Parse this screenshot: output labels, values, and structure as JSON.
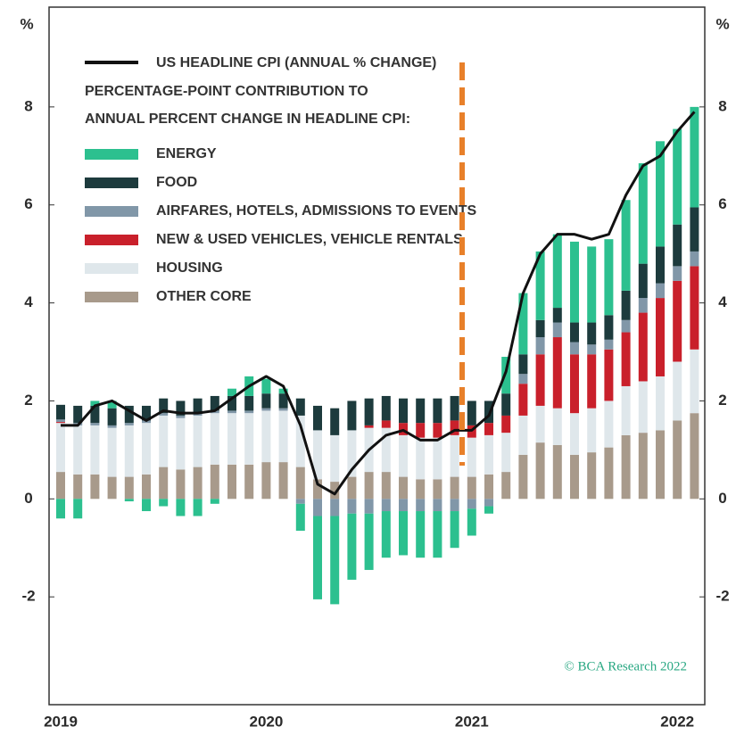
{
  "chart_data": {
    "type": "stacked-bar-line",
    "unit_label": "%",
    "legend_heading": [
      "PERCENTAGE-POINT CONTRIBUTION TO",
      "ANNUAL PERCENT CHANGE IN HEADLINE CPI:"
    ],
    "credit": "© BCΑ Research 2022",
    "categories": [
      "2019",
      null,
      null,
      null,
      null,
      null,
      null,
      null,
      null,
      null,
      null,
      null,
      "2020",
      null,
      null,
      null,
      null,
      null,
      null,
      null,
      null,
      null,
      null,
      null,
      "2021",
      null,
      null,
      null,
      null,
      null,
      null,
      null,
      null,
      null,
      null,
      null,
      "2022",
      null
    ],
    "ylim": [
      -4.2,
      10
    ],
    "yticks": [
      -2,
      0,
      2,
      4,
      6,
      8
    ],
    "grid": false,
    "line": {
      "name": "US HEADLINE CPI (ANNUAL % CHANGE)",
      "color": "#111111",
      "values": [
        1.5,
        1.5,
        1.9,
        2.0,
        1.8,
        1.6,
        1.8,
        1.75,
        1.75,
        1.8,
        2.05,
        2.3,
        2.5,
        2.3,
        1.5,
        0.3,
        0.1,
        0.6,
        1.0,
        1.3,
        1.4,
        1.2,
        1.2,
        1.4,
        1.4,
        1.7,
        2.6,
        4.2,
        5.0,
        5.4,
        5.4,
        5.3,
        5.4,
        6.2,
        6.8,
        7.0,
        7.5,
        7.9
      ]
    },
    "series": [
      {
        "name": "OTHER CORE",
        "color": "#a89a8b",
        "values": [
          0.55,
          0.5,
          0.5,
          0.45,
          0.45,
          0.5,
          0.65,
          0.6,
          0.65,
          0.7,
          0.7,
          0.7,
          0.75,
          0.75,
          0.65,
          0.4,
          0.35,
          0.45,
          0.55,
          0.55,
          0.45,
          0.4,
          0.4,
          0.45,
          0.45,
          0.5,
          0.55,
          0.9,
          1.15,
          1.1,
          0.9,
          0.95,
          1.05,
          1.3,
          1.35,
          1.4,
          1.6,
          1.75
        ]
      },
      {
        "name": "HOUSING",
        "color": "#dfe7eb",
        "values": [
          1.0,
          1.0,
          1.0,
          1.0,
          1.05,
          1.05,
          1.05,
          1.05,
          1.05,
          1.05,
          1.05,
          1.05,
          1.05,
          1.05,
          1.05,
          1.0,
          0.95,
          0.95,
          0.9,
          0.9,
          0.85,
          0.85,
          0.85,
          0.85,
          0.8,
          0.8,
          0.8,
          0.8,
          0.75,
          0.75,
          0.85,
          0.9,
          0.95,
          1.0,
          1.05,
          1.1,
          1.2,
          1.3
        ]
      },
      {
        "name": "NEW & USED VEHICLES, VEHICLE RENTALS",
        "color": "#c9202b",
        "values": [
          0.02,
          0,
          0,
          0,
          0,
          0,
          0,
          0,
          0,
          0,
          0,
          0,
          0,
          0,
          0,
          0,
          0,
          0,
          0.05,
          0.15,
          0.25,
          0.3,
          0.3,
          0.3,
          0.25,
          0.25,
          0.35,
          0.65,
          1.05,
          1.45,
          1.2,
          1.1,
          1.05,
          1.1,
          1.4,
          1.6,
          1.65,
          1.7
        ]
      },
      {
        "name": "AIRFARES, HOTELS, ADMISSIONS TO EVENTS",
        "color": "#8197a8",
        "values": [
          0.05,
          0.05,
          0.05,
          0.05,
          0.05,
          0.05,
          0.05,
          0.05,
          0.05,
          0.05,
          0.05,
          0.05,
          0.05,
          0.05,
          -0.1,
          -0.35,
          -0.35,
          -0.3,
          -0.3,
          -0.25,
          -0.25,
          -0.25,
          -0.25,
          -0.25,
          -0.2,
          -0.15,
          0.0,
          0.2,
          0.35,
          0.3,
          0.25,
          0.2,
          0.2,
          0.25,
          0.3,
          0.3,
          0.3,
          0.3
        ]
      },
      {
        "name": "FOOD",
        "color": "#1d3b3d",
        "values": [
          0.3,
          0.35,
          0.35,
          0.35,
          0.35,
          0.3,
          0.3,
          0.3,
          0.3,
          0.3,
          0.3,
          0.3,
          0.3,
          0.3,
          0.35,
          0.5,
          0.55,
          0.6,
          0.55,
          0.5,
          0.5,
          0.5,
          0.5,
          0.5,
          0.5,
          0.45,
          0.45,
          0.4,
          0.35,
          0.3,
          0.4,
          0.45,
          0.5,
          0.6,
          0.7,
          0.75,
          0.85,
          0.9
        ]
      },
      {
        "name": "ENERGY",
        "color": "#2cc08f",
        "values": [
          -0.4,
          -0.4,
          0.1,
          0.15,
          -0.05,
          -0.25,
          -0.15,
          -0.35,
          -0.35,
          -0.1,
          0.15,
          0.4,
          0.3,
          0.1,
          -0.55,
          -1.7,
          -1.8,
          -1.35,
          -1.15,
          -0.95,
          -0.9,
          -0.95,
          -0.95,
          -0.75,
          -0.55,
          -0.15,
          0.75,
          1.25,
          1.4,
          1.5,
          1.65,
          1.55,
          1.55,
          1.85,
          2.05,
          2.15,
          1.95,
          2.05
        ]
      }
    ]
  }
}
